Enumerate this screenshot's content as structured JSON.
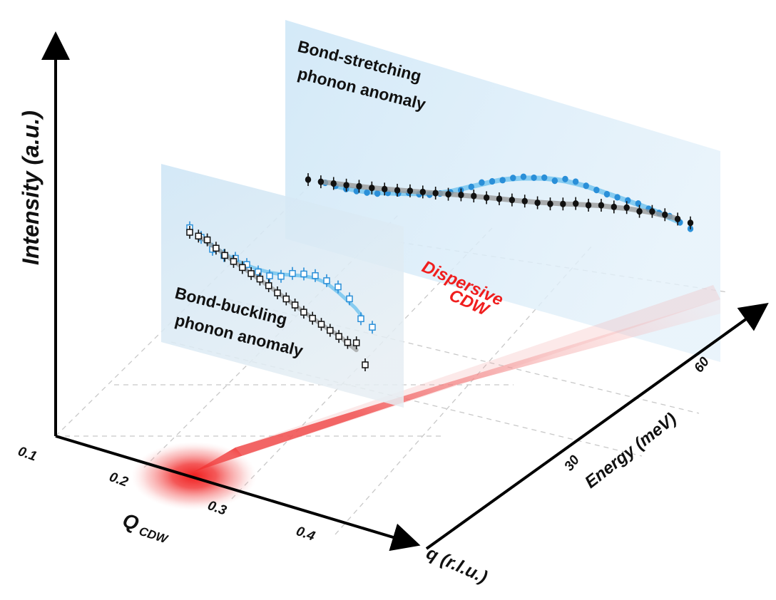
{
  "axes": {
    "intensity_label": "Intensity (a.u.)",
    "q_label": "q (r.l.u.)",
    "energy_label": "Energy (meV)",
    "qcdw_main": "Q",
    "qcdw_sub": "CDW",
    "q_ticks": [
      "0.1",
      "0.2",
      "0.3",
      "0.4"
    ],
    "energy_ticks": [
      "30",
      "60"
    ]
  },
  "panels": {
    "stretching": {
      "line1": "Bond-stretching",
      "line2": "phonon anomaly"
    },
    "buckling": {
      "line1": "Bond-buckling",
      "line2": "phonon anomaly"
    }
  },
  "cdw": {
    "line1": "Dispersive",
    "line2": "CDW"
  },
  "colors": {
    "cdw_red": "#f01e1e",
    "blue_series": "#2a8fd8",
    "blue_fit": "#7cc8f0",
    "black_series": "#111111",
    "gray_fit": "#9a9a9a",
    "panel_fill": "#d6ebf8"
  },
  "series": {
    "stretch_black": [
      3.2,
      3.1,
      3.05,
      3.0,
      3.0,
      2.95,
      2.95,
      2.95,
      3.0,
      3.0,
      3.0,
      3.0,
      3.05,
      3.05,
      3.0,
      3.0,
      3.0,
      3.0,
      2.95,
      2.95,
      3.05,
      3.2,
      3.15,
      3.25,
      3.2,
      3.25,
      3.0,
      3.1,
      2.9,
      2.6,
      2.35
    ],
    "stretch_blue": [
      2.9,
      2.7,
      2.5,
      2.4,
      2.35,
      2.35,
      2.5,
      2.55,
      2.7,
      2.65,
      2.7,
      2.9,
      3.1,
      3.4,
      3.8,
      4.3,
      4.5,
      4.7,
      5.0,
      5.2,
      5.2,
      5.3,
      5.1,
      5.35,
      5.2,
      4.9,
      4.6,
      4.3,
      4.1,
      3.9,
      3.7,
      3.3,
      3.0,
      2.8,
      2.3,
      1.8
    ],
    "buckle_black": [
      3.5,
      3.6,
      3.7,
      3.4,
      3.2,
      3.1,
      3.0,
      2.9,
      2.85,
      2.7,
      2.5,
      2.4,
      2.3,
      2.1,
      2.0,
      1.9,
      1.8,
      1.7,
      1.6,
      2.0,
      0.5
    ],
    "buckle_blue": [
      3.9,
      3.5,
      2.9,
      2.8,
      3.0,
      2.9,
      2.7,
      2.8,
      3.2,
      3.9,
      4.3,
      4.6,
      4.6,
      4.5,
      3.9,
      2.6,
      2.3
    ]
  }
}
